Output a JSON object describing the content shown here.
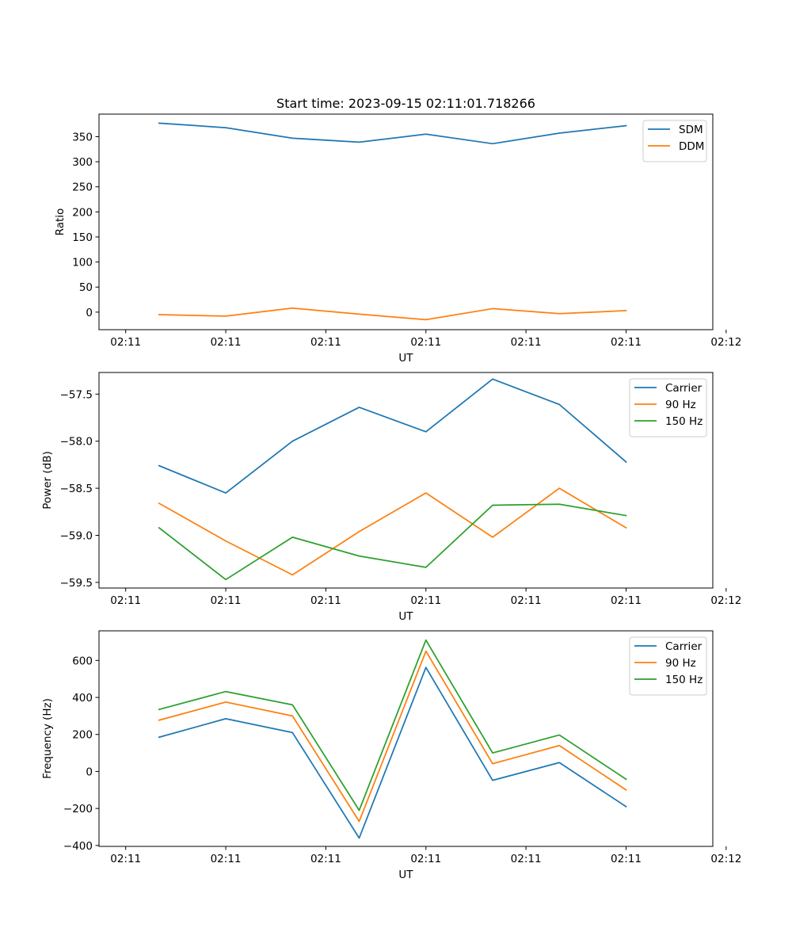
{
  "chart_data": [
    {
      "type": "line",
      "title": "Start time: 2023-09-15 02:11:01.718266",
      "xlabel": "UT",
      "ylabel": "Ratio",
      "xlim": [
        -0.4,
        8.8
      ],
      "ylim": [
        -35,
        395
      ],
      "x": [
        0.5,
        1.5,
        2.5,
        3.5,
        4.5,
        5.5,
        6.5,
        7.5
      ],
      "xticks": [
        0,
        1.5,
        3,
        4.5,
        6,
        7.5,
        9
      ],
      "xtick_labels": [
        "02:11",
        "02:11",
        "02:11",
        "02:11",
        "02:11",
        "02:11",
        "02:12"
      ],
      "yticks": [
        0,
        50,
        100,
        150,
        200,
        250,
        300,
        350
      ],
      "ytick_labels": [
        "0",
        "50",
        "100",
        "150",
        "200",
        "250",
        "300",
        "350"
      ],
      "legend": "upper right",
      "series": [
        {
          "name": "SDM",
          "color": "#1f77b4",
          "values": [
            377,
            368,
            347,
            339,
            355,
            336,
            357,
            372
          ]
        },
        {
          "name": "DDM",
          "color": "#ff7f0e",
          "values": [
            -5,
            -8,
            8,
            -4,
            -15,
            7,
            -3,
            3
          ]
        }
      ]
    },
    {
      "type": "line",
      "title": "",
      "xlabel": "UT",
      "ylabel": "Power (dB)",
      "xlim": [
        -0.4,
        8.8
      ],
      "ylim": [
        -59.56,
        -57.27
      ],
      "x": [
        0.5,
        1.5,
        2.5,
        3.5,
        4.5,
        5.5,
        6.5,
        7.5
      ],
      "xticks": [
        0,
        1.5,
        3,
        4.5,
        6,
        7.5,
        9
      ],
      "xtick_labels": [
        "02:11",
        "02:11",
        "02:11",
        "02:11",
        "02:11",
        "02:11",
        "02:12"
      ],
      "yticks": [
        -59.5,
        -59.0,
        -58.5,
        -58.0,
        -57.5
      ],
      "ytick_labels": [
        "−59.5",
        "−59.0",
        "−58.5",
        "−58.0",
        "−57.5"
      ],
      "legend": "upper right",
      "series": [
        {
          "name": "Carrier",
          "color": "#1f77b4",
          "values": [
            -58.26,
            -58.55,
            -58.0,
            -57.64,
            -57.9,
            -57.34,
            -57.61,
            -58.22
          ]
        },
        {
          "name": "90 Hz",
          "color": "#ff7f0e",
          "values": [
            -58.66,
            -59.06,
            -59.42,
            -58.96,
            -58.55,
            -59.02,
            -58.5,
            -58.92
          ]
        },
        {
          "name": "150 Hz",
          "color": "#2ca02c",
          "values": [
            -58.92,
            -59.47,
            -59.02,
            -59.22,
            -59.34,
            -58.68,
            -58.67,
            -58.79
          ]
        }
      ]
    },
    {
      "type": "line",
      "title": "",
      "xlabel": "UT",
      "ylabel": "Frequency (Hz)",
      "xlim": [
        -0.4,
        8.8
      ],
      "ylim": [
        -405,
        760
      ],
      "x": [
        0.5,
        1.5,
        2.5,
        3.5,
        4.5,
        5.5,
        6.5,
        7.5
      ],
      "xticks": [
        0,
        1.5,
        3,
        4.5,
        6,
        7.5,
        9
      ],
      "xtick_labels": [
        "02:11",
        "02:11",
        "02:11",
        "02:11",
        "02:11",
        "02:11",
        "02:12"
      ],
      "yticks": [
        -400,
        -200,
        0,
        200,
        400,
        600
      ],
      "ytick_labels": [
        "−400",
        "−200",
        "0",
        "200",
        "400",
        "600"
      ],
      "legend": "upper right",
      "series": [
        {
          "name": "Carrier",
          "color": "#1f77b4",
          "values": [
            185,
            285,
            210,
            -360,
            562,
            -48,
            48,
            -190
          ]
        },
        {
          "name": "90 Hz",
          "color": "#ff7f0e",
          "values": [
            277,
            375,
            300,
            -270,
            650,
            42,
            140,
            -100
          ]
        },
        {
          "name": "150 Hz",
          "color": "#2ca02c",
          "values": [
            335,
            432,
            360,
            -210,
            710,
            100,
            197,
            -42
          ]
        }
      ]
    }
  ]
}
